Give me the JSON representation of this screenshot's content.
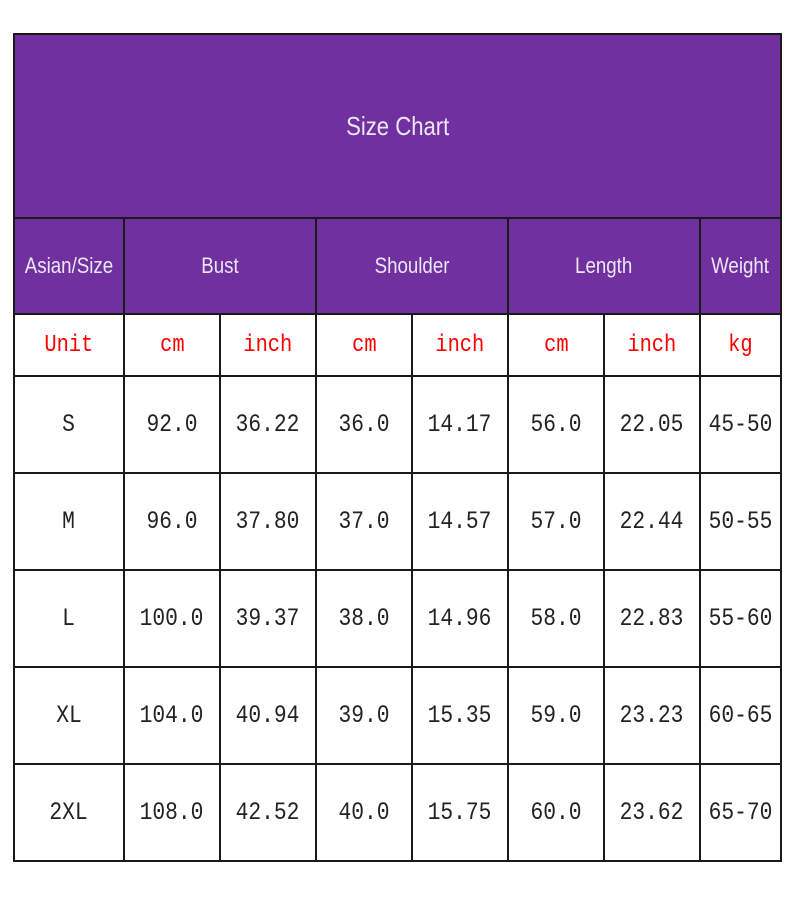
{
  "title": "Size Chart",
  "headers": [
    "Asian/Size",
    "Bust",
    "Shoulder",
    "Length",
    "Weight"
  ],
  "units": [
    "Unit",
    "cm",
    "inch",
    "cm",
    "inch",
    "cm",
    "inch",
    "kg"
  ],
  "rows": [
    [
      "S",
      "92.0",
      "36.22",
      "36.0",
      "14.17",
      "56.0",
      "22.05",
      "45-50"
    ],
    [
      "M",
      "96.0",
      "37.80",
      "37.0",
      "14.57",
      "57.0",
      "22.44",
      "50-55"
    ],
    [
      "L",
      "100.0",
      "39.37",
      "38.0",
      "14.96",
      "58.0",
      "22.83",
      "55-60"
    ],
    [
      "XL",
      "104.0",
      "40.94",
      "39.0",
      "15.35",
      "59.0",
      "23.23",
      "60-65"
    ],
    [
      "2XL",
      "108.0",
      "42.52",
      "40.0",
      "15.75",
      "60.0",
      "23.62",
      "65-70"
    ]
  ],
  "colors": {
    "header_bg": "#7030A0",
    "header_text": "#ece6f5",
    "unit_text": "#ff0000"
  }
}
